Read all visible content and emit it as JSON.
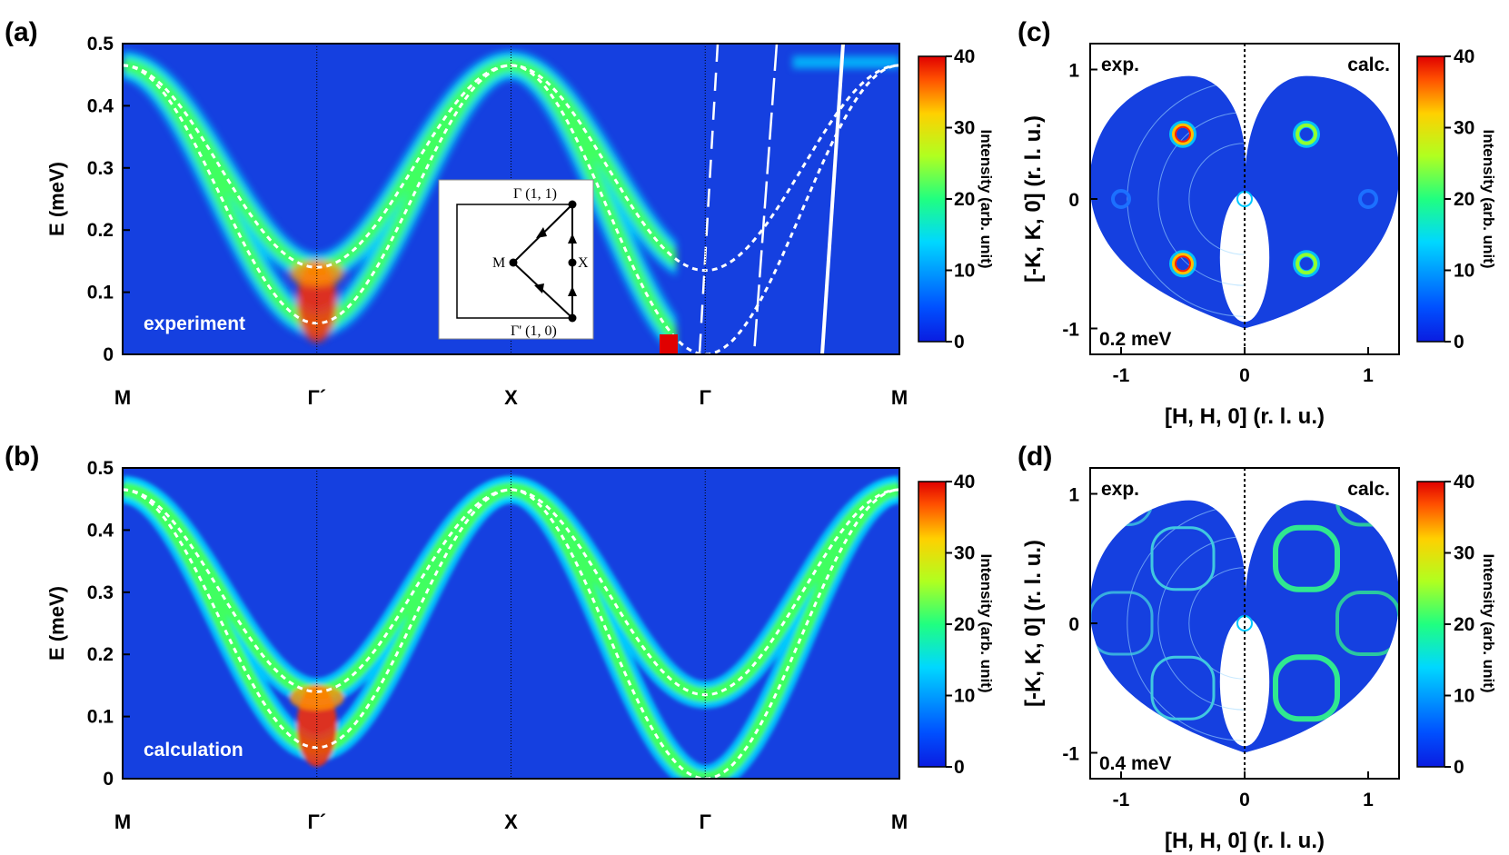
{
  "chart_data": [
    {
      "panel": "(a)",
      "type": "heatmap",
      "title": "",
      "label": "experiment",
      "ylabel": "E (meV)",
      "xlabel": "",
      "ylim": [
        0,
        0.5
      ],
      "yticks": [
        "0",
        "0.1",
        "0.2",
        "0.3",
        "0.4",
        "0.5"
      ],
      "xtick_labels": [
        "M",
        "Γ´",
        "X",
        "Γ",
        "M"
      ],
      "colorbar": {
        "label": "Intensity (arb. unit)",
        "range": [
          0,
          40
        ],
        "ticks": [
          "0",
          "10",
          "20",
          "30",
          "40"
        ]
      },
      "path_positions": [
        0,
        1,
        2,
        3,
        4
      ],
      "dispersion_upper_meV": [
        0.465,
        0.14,
        0.465,
        0.135,
        0.465
      ],
      "dispersion_lower_meV": [
        0.465,
        0.05,
        0.465,
        0.0,
        0.465
      ],
      "inset": {
        "labels": [
          "Γ (1, 1)",
          "M",
          "X",
          "Γ' (1, 0)"
        ]
      }
    },
    {
      "panel": "(b)",
      "type": "heatmap",
      "label": "calculation",
      "ylabel": "E (meV)",
      "ylim": [
        0,
        0.5
      ],
      "yticks": [
        "0",
        "0.1",
        "0.2",
        "0.3",
        "0.4",
        "0.5"
      ],
      "xtick_labels": [
        "M",
        "Γ´",
        "X",
        "Γ",
        "M"
      ],
      "colorbar": {
        "label": "Intensity (arb. unit)",
        "range": [
          0,
          40
        ],
        "ticks": [
          "0",
          "10",
          "20",
          "30",
          "40"
        ]
      },
      "path_positions": [
        0,
        1,
        2,
        3,
        4
      ],
      "dispersion_upper_meV": [
        0.465,
        0.14,
        0.465,
        0.135,
        0.465
      ],
      "dispersion_lower_meV": [
        0.465,
        0.05,
        0.465,
        0.0,
        0.465
      ]
    },
    {
      "panel": "(c)",
      "type": "heatmap",
      "energy": "0.2 meV",
      "left_label": "exp.",
      "right_label": "calc.",
      "xlabel": "[H, H, 0] (r. l. u.)",
      "ylabel": "[-K, K, 0] (r. l. u.)",
      "xticks": [
        "-1",
        "0",
        "1"
      ],
      "yticks": [
        "-1",
        "0",
        "1"
      ],
      "xlim": [
        -1.25,
        1.25
      ],
      "ylim": [
        -1.2,
        1.2
      ],
      "colorbar": {
        "label": "Intensity (arb. unit)",
        "range": [
          0,
          40
        ],
        "ticks": [
          "0",
          "10",
          "20",
          "30",
          "40"
        ]
      },
      "spots": [
        [
          -0.5,
          0.5
        ],
        [
          -0.5,
          -0.5
        ],
        [
          0.5,
          0.5
        ],
        [
          0.5,
          -0.5
        ],
        [
          -1.0,
          0.0
        ],
        [
          1.0,
          0.0
        ],
        [
          0.0,
          0.0
        ]
      ]
    },
    {
      "panel": "(d)",
      "type": "heatmap",
      "energy": "0.4 meV",
      "left_label": "exp.",
      "right_label": "calc.",
      "xlabel": "[H, H, 0] (r. l. u.)",
      "ylabel": "[-K, K, 0] (r. l. u.)",
      "xticks": [
        "-1",
        "0",
        "1"
      ],
      "yticks": [
        "-1",
        "0",
        "1"
      ],
      "xlim": [
        -1.25,
        1.25
      ],
      "ylim": [
        -1.2,
        1.2
      ],
      "colorbar": {
        "label": "Intensity (arb. unit)",
        "range": [
          0,
          40
        ],
        "ticks": [
          "0",
          "10",
          "20",
          "30",
          "40"
        ]
      },
      "rings": [
        [
          -0.5,
          0.5
        ],
        [
          -0.5,
          -0.5
        ],
        [
          0.5,
          0.5
        ],
        [
          0.5,
          -0.5
        ],
        [
          -1.0,
          0.0
        ],
        [
          1.0,
          0.0
        ],
        [
          1.0,
          1.0
        ],
        [
          -1.0,
          1.0
        ]
      ]
    }
  ],
  "colors": {
    "background": "#1540e0",
    "frame": "#000000",
    "dashed": "#ffffff"
  }
}
